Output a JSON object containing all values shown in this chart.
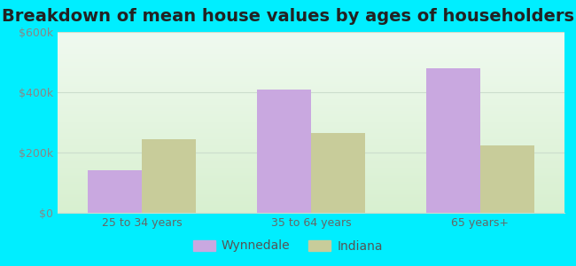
{
  "title": "Breakdown of mean house values by ages of householders",
  "categories": [
    "25 to 34 years",
    "35 to 64 years",
    "65 years+"
  ],
  "wynnedale_values": [
    140000,
    410000,
    480000
  ],
  "indiana_values": [
    245000,
    265000,
    225000
  ],
  "wynnedale_color": "#c9a8e0",
  "indiana_color": "#c8cc9a",
  "background_outer": "#00eeff",
  "background_inner_top": "#f0faf0",
  "background_inner_bottom": "#d8f0d0",
  "ylim": [
    0,
    600000
  ],
  "yticks": [
    0,
    200000,
    400000,
    600000
  ],
  "ytick_labels": [
    "$0",
    "$200k",
    "$400k",
    "$600k"
  ],
  "legend_labels": [
    "Wynnedale",
    "Indiana"
  ],
  "bar_width": 0.32,
  "title_fontsize": 14,
  "tick_fontsize": 9,
  "legend_fontsize": 10,
  "grid_color": "#ccddcc",
  "tick_color": "#888888",
  "xlabel_color": "#666666"
}
